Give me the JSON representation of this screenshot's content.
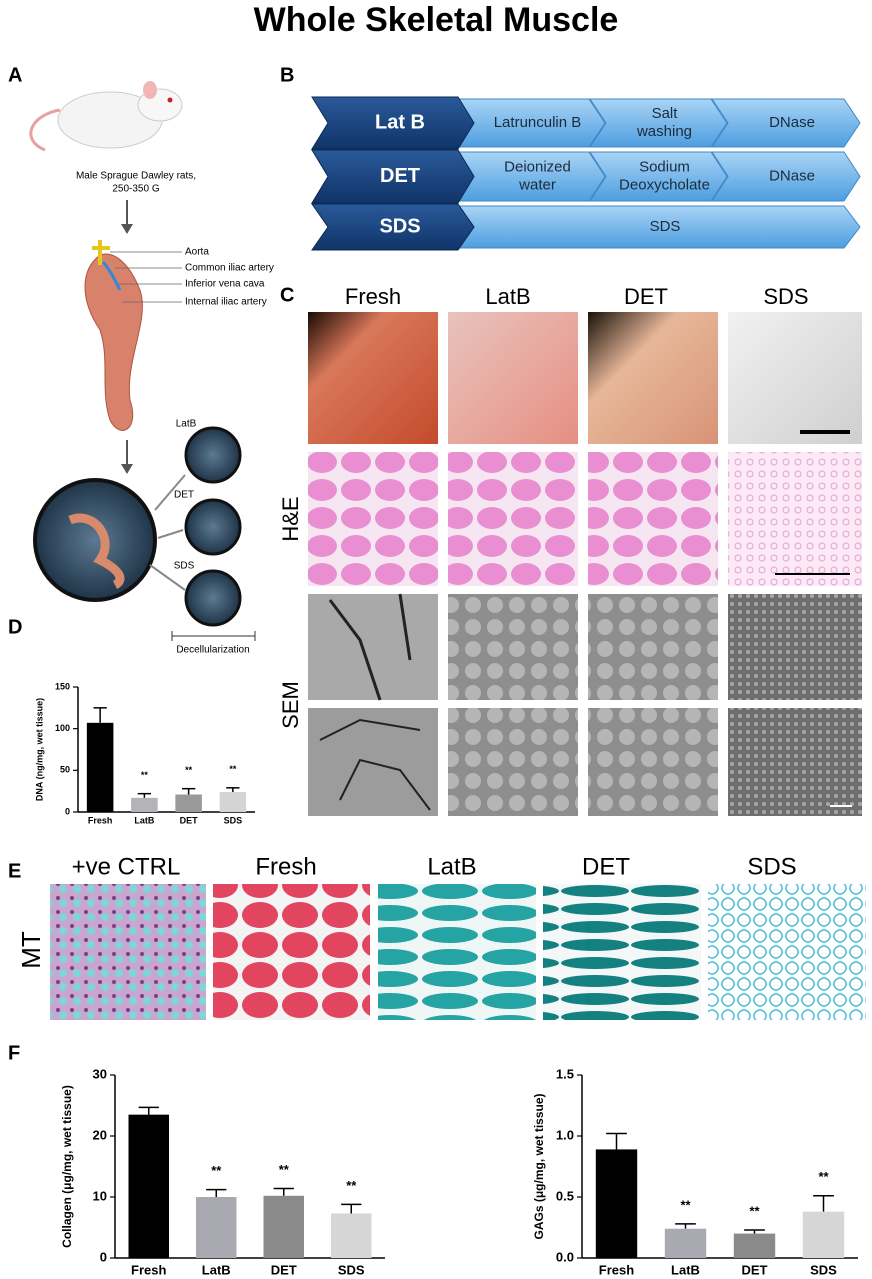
{
  "title": "Whole Skeletal Muscle",
  "panel_a": {
    "label": "A",
    "rat_caption": [
      "Male Sprague Dawley rats,",
      "250-350 G"
    ],
    "vessels": [
      "Aorta",
      "Common iliac artery",
      "Inferior vena cava",
      "Internal iliac artery"
    ],
    "treatments": [
      "LatB",
      "DET",
      "SDS"
    ],
    "bracket_label": "Decellularization"
  },
  "panel_b": {
    "label": "B",
    "rows": [
      {
        "name": "Lat B",
        "steps": [
          [
            "Latrunculin B"
          ],
          [
            "Salt",
            "washing"
          ],
          [
            "DNase"
          ]
        ]
      },
      {
        "name": "DET",
        "steps": [
          [
            "Deionized",
            "water"
          ],
          [
            "Sodium",
            "Deoxycholate"
          ],
          [
            "DNase"
          ]
        ]
      },
      {
        "name": "SDS",
        "steps": [
          [
            "SDS"
          ]
        ]
      }
    ]
  },
  "panel_c": {
    "label": "C",
    "columns": [
      "Fresh",
      "LatB",
      "DET",
      "SDS"
    ],
    "row_labels": [
      "H&E",
      "SEM"
    ]
  },
  "panel_d": {
    "label": "D"
  },
  "panel_e": {
    "label": "E",
    "columns": [
      "+ve CTRL",
      "Fresh",
      "LatB",
      "DET",
      "SDS"
    ],
    "row_label": "MT"
  },
  "panel_f": {
    "label": "F"
  },
  "chart_data": [
    {
      "type": "bar",
      "y_label": "DNA (ng/mg, wet tissue)",
      "categories": [
        "Fresh",
        "LatB",
        "DET",
        "SDS"
      ],
      "values": [
        107,
        17,
        21,
        24
      ],
      "errors": [
        18,
        5,
        7,
        5
      ],
      "colors": [
        "#000000",
        "#b4b4b8",
        "#9a9a9a",
        "#d4d4d4"
      ],
      "significance": [
        null,
        "**",
        "**",
        "**"
      ],
      "ylim": [
        0,
        150
      ],
      "yticks": [
        0,
        50,
        100,
        150
      ]
    },
    {
      "type": "bar",
      "y_label": "Collagen (μg/mg, wet tissue)",
      "categories": [
        "Fresh",
        "LatB",
        "DET",
        "SDS"
      ],
      "values": [
        23.5,
        10,
        10.2,
        7.3
      ],
      "errors": [
        1.2,
        1.2,
        1.2,
        1.5
      ],
      "colors": [
        "#000000",
        "#a9a9b2",
        "#8a8a8a",
        "#d6d6d6"
      ],
      "significance": [
        null,
        "**",
        "**",
        "**"
      ],
      "ylim": [
        0,
        30
      ],
      "yticks": [
        0,
        10,
        20,
        30
      ]
    },
    {
      "type": "bar",
      "y_label": "GAGs (μg/mg, wet tissue)",
      "categories": [
        "Fresh",
        "LatB",
        "DET",
        "SDS"
      ],
      "values": [
        0.89,
        0.24,
        0.2,
        0.38
      ],
      "errors": [
        0.13,
        0.04,
        0.03,
        0.13
      ],
      "colors": [
        "#000000",
        "#a9a9b2",
        "#8a8a8a",
        "#d6d6d6"
      ],
      "significance": [
        null,
        "**",
        "**",
        "**"
      ],
      "ylim": [
        0,
        1.5
      ],
      "yticks": [
        {
          "value": 0,
          "label": "0.0"
        },
        0.5,
        {
          "value": 1,
          "label": "1.0"
        },
        {
          "value": 1.5,
          "label": "1.5"
        }
      ]
    }
  ]
}
